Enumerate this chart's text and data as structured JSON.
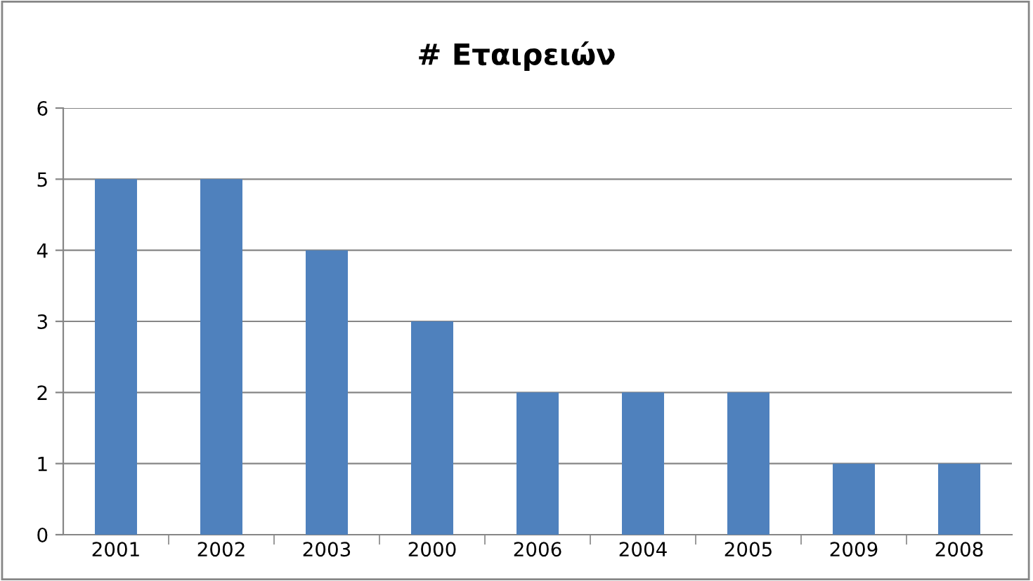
{
  "chart_data": {
    "type": "bar",
    "title": "# Εταιρειών",
    "categories": [
      "2001",
      "2002",
      "2003",
      "2000",
      "2006",
      "2004",
      "2005",
      "2009",
      "2008"
    ],
    "values": [
      5,
      5,
      4,
      3,
      2,
      2,
      2,
      1,
      1
    ],
    "color": "#4f81bd",
    "ylim": [
      0,
      6
    ],
    "yticks": [
      0,
      1,
      2,
      3,
      4,
      5,
      6
    ],
    "grid": "y"
  }
}
